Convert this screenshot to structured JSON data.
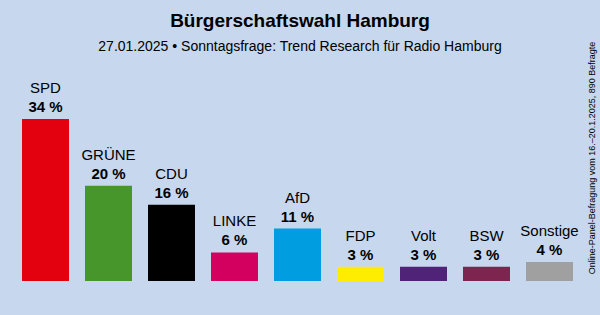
{
  "chart_data": {
    "type": "bar",
    "title": "Bürgerschaftswahl Hamburg",
    "subtitle": "27.01.2025 • Sonntagsfrage: Trend Research für Radio Hamburg",
    "note": "Online-Panel-Befragung vom 16.–20.1.2025, 890 Befragte",
    "categories": [
      "SPD",
      "GRÜNE",
      "CDU",
      "LINKE",
      "AfD",
      "FDP",
      "Volt",
      "BSW",
      "Sonstige"
    ],
    "values": [
      34,
      20,
      16,
      6,
      11,
      3,
      3,
      3,
      4
    ],
    "value_labels": [
      "34 %",
      "20 %",
      "16 %",
      "6 %",
      "11 %",
      "3 %",
      "3 %",
      "3 %",
      "4 %"
    ],
    "colors": [
      "#e3000f",
      "#46962b",
      "#000000",
      "#d4005f",
      "#009ee0",
      "#ffed00",
      "#502379",
      "#7d254f",
      "#a0a0a0"
    ],
    "ylim": [
      0,
      34
    ],
    "grid": false,
    "data_labels": true,
    "tick_labels": false
  }
}
